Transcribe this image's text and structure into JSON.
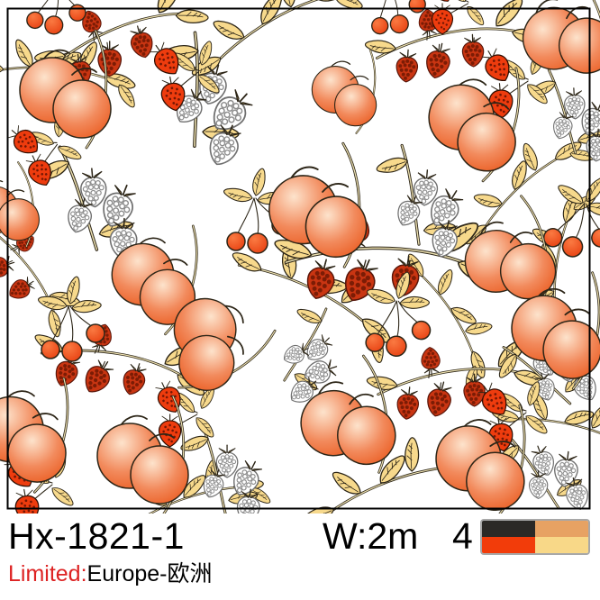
{
  "product": {
    "code": "Hx-1821-1",
    "width_label": "W:2m",
    "colorways_count": "4",
    "limited_label": "Limited:",
    "limited_value": "Europe-欧洲"
  },
  "colorway_swatch": {
    "border_color": "#a8a8a8",
    "colors": [
      "#2b2926",
      "#e7a263",
      "#f23c0a",
      "#f8d888"
    ]
  },
  "pattern": {
    "motifs": [
      "peach-pair",
      "raspberry-branch",
      "white-raspberry-sprig",
      "strawberry-duo",
      "cherry-sprig",
      "leaf-branch"
    ],
    "palette": {
      "ink": "#2c2517",
      "frame": "#000000",
      "text": "#000000",
      "limited_red": "#dd2222",
      "swatch_border": "#a8a8a8",
      "peach_hi": "#fde3cc",
      "peach_mid": "#f28a5c",
      "peach_lo": "#e85012",
      "cherry_hi": "#fa7a42",
      "cherry_lo": "#e53a0c",
      "leaf_fill": "#f7d98c",
      "branch_light": "#ece0b0",
      "rasp_fill": "#c93512",
      "rasp_dot": "#7c1c05",
      "rasp_stroke": "#58160a",
      "wrasp_dot": "#8d8d8d",
      "wrasp_stroke": "#707070",
      "straw_fill": "#ee3c0e",
      "straw_dot": "#741704",
      "straw_stroke": "#2f0e02"
    },
    "placements": [
      [
        "leaf",
        60,
        84,
        0.9,
        18
      ],
      [
        "leaf",
        300,
        34,
        1,
        -18
      ],
      [
        "leaf",
        345,
        330,
        1,
        40
      ],
      [
        "leaf",
        430,
        545,
        1,
        -8
      ],
      [
        "leaf",
        628,
        478,
        0.85,
        25
      ],
      [
        "leaf",
        580,
        215,
        0.85,
        -30
      ],
      [
        "leaf",
        625,
        300,
        0.85,
        -70
      ],
      [
        "leaf",
        210,
        560,
        0.85,
        -5
      ],
      [
        "leaf",
        495,
        350,
        0.8,
        70
      ],
      [
        "rasp",
        128,
        40,
        1,
        -8
      ],
      [
        "rasp",
        498,
        44,
        1,
        4
      ],
      [
        "rasp",
        420,
        285,
        1.25,
        15
      ],
      [
        "rasp",
        128,
        400,
        1,
        24
      ],
      [
        "rasp",
        500,
        420,
        1,
        6
      ],
      [
        "rasp",
        22,
        295,
        0.85,
        65
      ],
      [
        "wrasp",
        240,
        110,
        1.3,
        30
      ],
      [
        "wrasp",
        112,
        222,
        1.25,
        10
      ],
      [
        "wrasp",
        644,
        126,
        1,
        12
      ],
      [
        "wrasp",
        478,
        222,
        1.15,
        20
      ],
      [
        "wrasp",
        350,
        398,
        0.95,
        60
      ],
      [
        "wrasp",
        258,
        524,
        1.05,
        15
      ],
      [
        "wrasp",
        614,
        408,
        1,
        -20
      ],
      [
        "wrasp",
        612,
        520,
        1,
        -5
      ],
      [
        "straw",
        196,
        82,
        1,
        0
      ],
      [
        "straw",
        562,
        90,
        1,
        5
      ],
      [
        "straw",
        42,
        168,
        0.95,
        -15
      ],
      [
        "straw",
        498,
        2,
        0.9,
        10
      ],
      [
        "straw",
        196,
        458,
        0.95,
        10
      ],
      [
        "straw",
        34,
        540,
        1,
        0
      ],
      [
        "straw",
        560,
        460,
        1,
        0
      ],
      [
        "cherry",
        282,
        246,
        1,
        0
      ],
      [
        "cherry",
        76,
        366,
        1,
        0
      ],
      [
        "cherry",
        438,
        360,
        1,
        5
      ],
      [
        "cherry",
        640,
        250,
        1,
        20
      ],
      [
        "cherry",
        60,
        6,
        0.9,
        10
      ],
      [
        "cherry",
        436,
        6,
        0.9,
        -10
      ],
      [
        "peach",
        66,
        100,
        1,
        0
      ],
      [
        "peach",
        378,
        100,
        0.72,
        5
      ],
      [
        "peach",
        622,
        40,
        0.95,
        -20
      ],
      [
        "peach",
        520,
        132,
        1,
        12
      ],
      [
        "peach",
        345,
        232,
        1.05,
        -5
      ],
      [
        "peach",
        166,
        306,
        0.95,
        10
      ],
      [
        "peach",
        558,
        288,
        0.95,
        -15
      ],
      [
        "peach",
        612,
        365,
        1,
        5
      ],
      [
        "peach",
        232,
        372,
        0.95,
        55
      ],
      [
        "peach",
        0,
        232,
        0.72,
        -10
      ],
      [
        "peach",
        20,
        478,
        1,
        10
      ],
      [
        "peach",
        152,
        506,
        1,
        0
      ],
      [
        "peach",
        378,
        468,
        1,
        -12
      ],
      [
        "peach",
        528,
        510,
        1,
        8
      ]
    ]
  }
}
